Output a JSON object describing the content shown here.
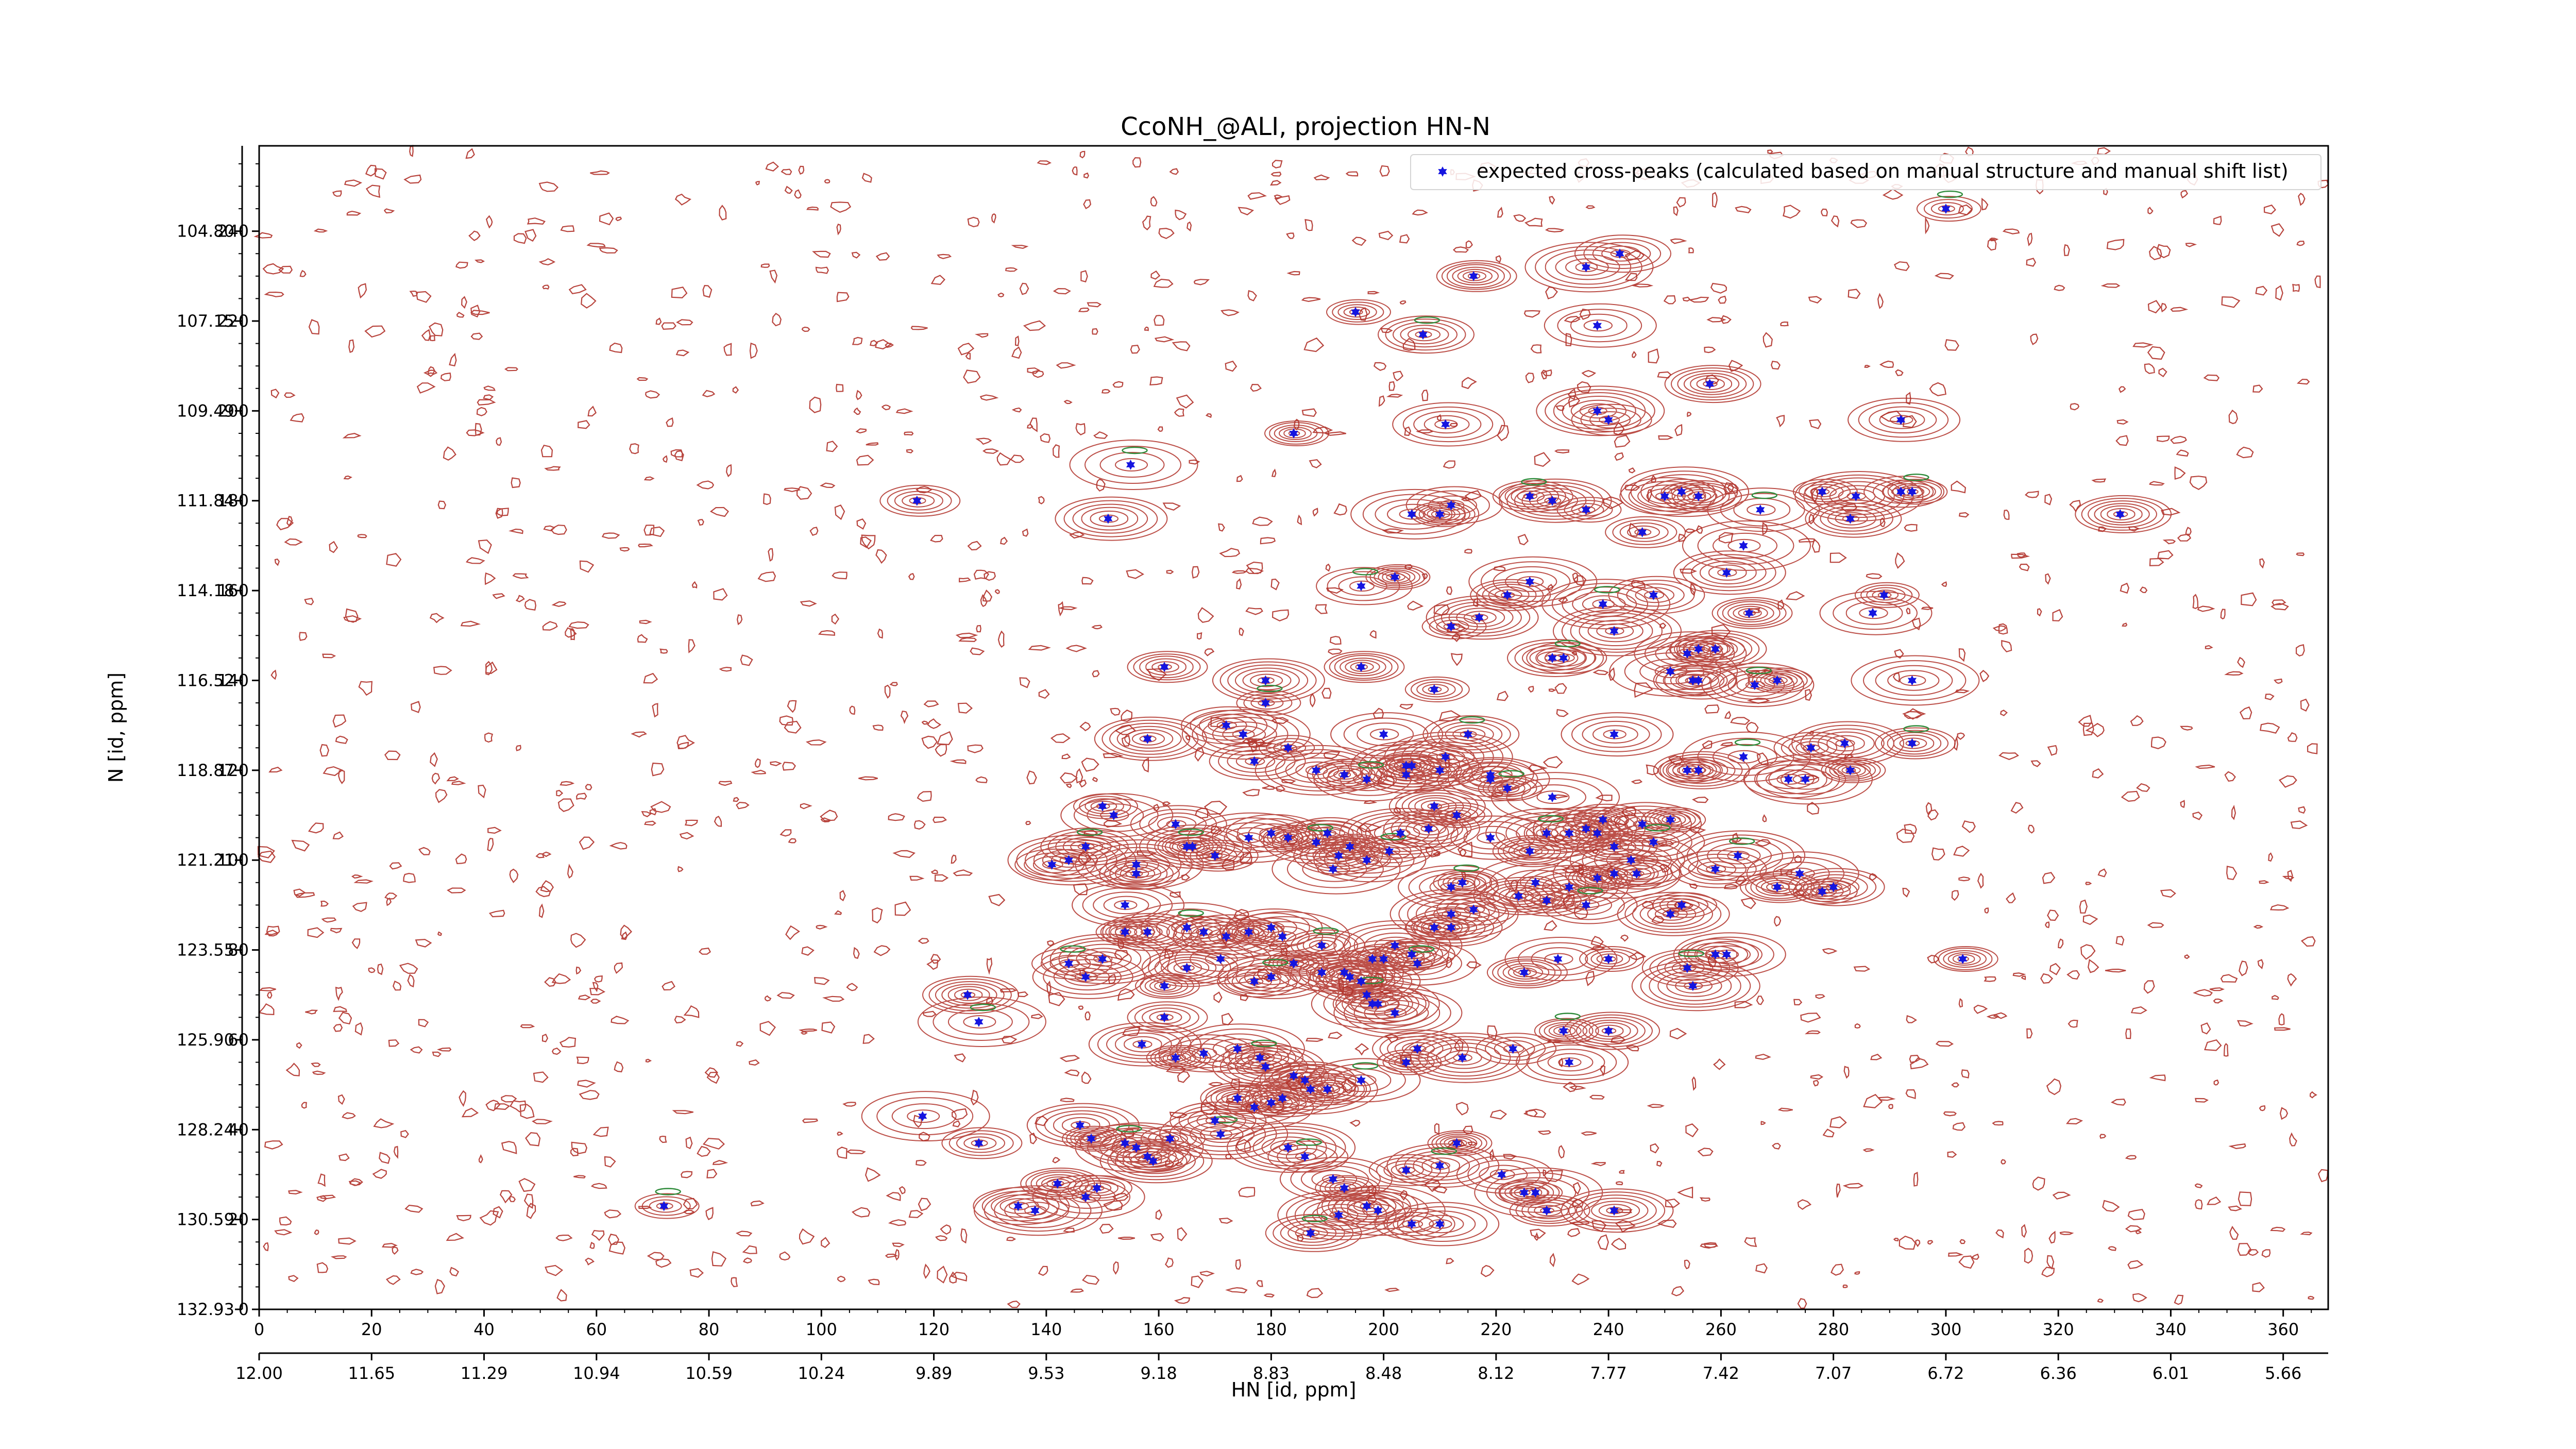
{
  "chart_data": {
    "type": "scatter",
    "title": "CcoNH_@ALI, projection HN-N",
    "xlabel": "HN [id, ppm]",
    "ylabel": "N [id, ppm]",
    "xlim": [
      0,
      368
    ],
    "ylim": [
      0,
      259
    ],
    "grid": false,
    "legend": {
      "position": "top-right",
      "entries": [
        "expected cross-peaks (calculated based on manual structure and manual shift list)"
      ]
    },
    "x_ticks_index": [
      "0",
      "20",
      "40",
      "60",
      "80",
      "100",
      "120",
      "140",
      "160",
      "180",
      "200",
      "220",
      "240",
      "260",
      "280",
      "300",
      "320",
      "340",
      "360"
    ],
    "x_ticks_ppm": [
      "12.00",
      "11.65",
      "11.29",
      "10.94",
      "10.59",
      "10.24",
      "9.89",
      "9.53",
      "9.18",
      "8.83",
      "8.48",
      "8.12",
      "7.77",
      "7.42",
      "7.07",
      "6.72",
      "6.36",
      "6.01",
      "5.66"
    ],
    "y_ticks_index": [
      "0",
      "20",
      "40",
      "60",
      "80",
      "100",
      "120",
      "140",
      "160",
      "180",
      "200",
      "220",
      "240"
    ],
    "y_ticks_ppm": [
      "132.93",
      "130.59",
      "128.24",
      "125.90",
      "123.55",
      "121.21",
      "118.87",
      "116.52",
      "114.18",
      "111.84",
      "109.49",
      "107.15",
      "104.80"
    ],
    "contour_color": "#b03028",
    "negative_contour_color": "#2e8b3a",
    "marker_color": "#1515e0",
    "series": [
      {
        "name": "expected cross-peaks (calculated based on manual structure and manual shift list)",
        "points": [
          [
            300,
            245
          ],
          [
            242,
            235
          ],
          [
            236,
            232
          ],
          [
            216,
            230
          ],
          [
            238,
            219
          ],
          [
            195,
            222
          ],
          [
            207,
            217
          ],
          [
            238,
            200
          ],
          [
            240,
            198
          ],
          [
            211,
            197
          ],
          [
            184,
            195
          ],
          [
            258,
            206
          ],
          [
            155,
            188
          ],
          [
            117,
            180
          ],
          [
            151,
            176
          ],
          [
            210,
            177
          ],
          [
            212,
            179
          ],
          [
            205,
            177
          ],
          [
            226,
            181
          ],
          [
            230,
            180
          ],
          [
            236,
            178
          ],
          [
            250,
            181
          ],
          [
            253,
            182
          ],
          [
            256,
            181
          ],
          [
            267,
            178
          ],
          [
            278,
            182
          ],
          [
            283,
            176
          ],
          [
            284,
            181
          ],
          [
            292,
            182
          ],
          [
            292,
            198
          ],
          [
            294,
            182
          ],
          [
            331,
            177
          ],
          [
            264,
            170
          ],
          [
            246,
            173
          ],
          [
            261,
            164
          ],
          [
            202,
            163
          ],
          [
            196,
            161
          ],
          [
            226,
            162
          ],
          [
            222,
            159
          ],
          [
            217,
            154
          ],
          [
            212,
            152
          ],
          [
            248,
            159
          ],
          [
            239,
            157
          ],
          [
            265,
            155
          ],
          [
            287,
            155
          ],
          [
            289,
            159
          ],
          [
            230,
            145
          ],
          [
            241,
            151
          ],
          [
            232,
            145
          ],
          [
            254,
            146
          ],
          [
            256,
            147
          ],
          [
            259,
            147
          ],
          [
            251,
            142
          ],
          [
            255,
            140
          ],
          [
            266,
            139
          ],
          [
            270,
            140
          ],
          [
            256,
            140
          ],
          [
            294,
            140
          ],
          [
            161,
            143
          ],
          [
            179,
            140
          ],
          [
            179,
            135
          ],
          [
            172,
            130
          ],
          [
            175,
            128
          ],
          [
            196,
            143
          ],
          [
            200,
            128
          ],
          [
            209,
            138
          ],
          [
            215,
            128
          ],
          [
            211,
            123
          ],
          [
            219,
            119
          ],
          [
            241,
            128
          ],
          [
            254,
            120
          ],
          [
            256,
            120
          ],
          [
            264,
            123
          ],
          [
            276,
            125
          ],
          [
            282,
            126
          ],
          [
            283,
            120
          ],
          [
            272,
            118
          ],
          [
            275,
            118
          ],
          [
            294,
            126
          ],
          [
            158,
            127
          ],
          [
            183,
            125
          ],
          [
            177,
            122
          ],
          [
            188,
            120
          ],
          [
            193,
            119
          ],
          [
            197,
            118
          ],
          [
            204,
            121
          ],
          [
            204,
            119
          ],
          [
            205,
            121
          ],
          [
            210,
            120
          ],
          [
            219,
            118
          ],
          [
            222,
            116
          ],
          [
            209,
            112
          ],
          [
            230,
            114
          ],
          [
            239,
            109
          ],
          [
            246,
            108
          ],
          [
            251,
            109
          ],
          [
            248,
            104
          ],
          [
            244,
            100
          ],
          [
            241,
            103
          ],
          [
            236,
            107
          ],
          [
            238,
            106
          ],
          [
            233,
            106
          ],
          [
            229,
            106
          ],
          [
            226,
            102
          ],
          [
            219,
            105
          ],
          [
            213,
            110
          ],
          [
            208,
            107
          ],
          [
            203,
            106
          ],
          [
            201,
            102
          ],
          [
            197,
            100
          ],
          [
            194,
            103
          ],
          [
            192,
            101
          ],
          [
            191,
            98
          ],
          [
            190,
            106
          ],
          [
            188,
            104
          ],
          [
            183,
            105
          ],
          [
            180,
            106
          ],
          [
            176,
            105
          ],
          [
            170,
            101
          ],
          [
            166,
            103
          ],
          [
            165,
            103
          ],
          [
            163,
            108
          ],
          [
            156,
            99
          ],
          [
            156,
            97
          ],
          [
            152,
            110
          ],
          [
            150,
            112
          ],
          [
            147,
            103
          ],
          [
            144,
            100
          ],
          [
            141,
            99
          ],
          [
            154,
            90
          ],
          [
            154,
            84
          ],
          [
            158,
            84
          ],
          [
            165,
            85
          ],
          [
            168,
            84
          ],
          [
            172,
            83
          ],
          [
            176,
            84
          ],
          [
            180,
            85
          ],
          [
            182,
            83
          ],
          [
            189,
            81
          ],
          [
            193,
            75
          ],
          [
            198,
            78
          ],
          [
            200,
            78
          ],
          [
            202,
            81
          ],
          [
            205,
            79
          ],
          [
            206,
            77
          ],
          [
            209,
            85
          ],
          [
            212,
            85
          ],
          [
            212,
            88
          ],
          [
            216,
            89
          ],
          [
            212,
            94
          ],
          [
            214,
            95
          ],
          [
            224,
            92
          ],
          [
            227,
            95
          ],
          [
            229,
            91
          ],
          [
            233,
            94
          ],
          [
            238,
            96
          ],
          [
            236,
            90
          ],
          [
            241,
            97
          ],
          [
            245,
            97
          ],
          [
            251,
            88
          ],
          [
            253,
            90
          ],
          [
            259,
            98
          ],
          [
            263,
            101
          ],
          [
            270,
            94
          ],
          [
            274,
            97
          ],
          [
            278,
            93
          ],
          [
            280,
            94
          ],
          [
            150,
            78
          ],
          [
            144,
            77
          ],
          [
            147,
            74
          ],
          [
            161,
            72
          ],
          [
            165,
            76
          ],
          [
            171,
            78
          ],
          [
            177,
            73
          ],
          [
            180,
            74
          ],
          [
            184,
            77
          ],
          [
            189,
            75
          ],
          [
            198,
            68
          ],
          [
            194,
            74
          ],
          [
            196,
            73
          ],
          [
            197,
            70
          ],
          [
            199,
            68
          ],
          [
            202,
            66
          ],
          [
            225,
            75
          ],
          [
            231,
            78
          ],
          [
            240,
            78
          ],
          [
            254,
            76
          ],
          [
            255,
            72
          ],
          [
            259,
            79
          ],
          [
            261,
            79
          ],
          [
            303,
            78
          ],
          [
            126,
            70
          ],
          [
            128,
            64
          ],
          [
            161,
            65
          ],
          [
            157,
            59
          ],
          [
            163,
            56
          ],
          [
            168,
            57
          ],
          [
            174,
            58
          ],
          [
            178,
            56
          ],
          [
            179,
            54
          ],
          [
            184,
            52
          ],
          [
            186,
            51
          ],
          [
            187,
            49
          ],
          [
            190,
            49
          ],
          [
            196,
            51
          ],
          [
            204,
            55
          ],
          [
            206,
            58
          ],
          [
            214,
            56
          ],
          [
            223,
            58
          ],
          [
            233,
            55
          ],
          [
            232,
            62
          ],
          [
            240,
            62
          ],
          [
            118,
            43
          ],
          [
            128,
            37
          ],
          [
            146,
            41
          ],
          [
            148,
            38
          ],
          [
            154,
            37
          ],
          [
            156,
            36
          ],
          [
            158,
            34
          ],
          [
            159,
            33
          ],
          [
            162,
            38
          ],
          [
            170,
            42
          ],
          [
            171,
            39
          ],
          [
            174,
            47
          ],
          [
            177,
            45
          ],
          [
            180,
            46
          ],
          [
            182,
            47
          ],
          [
            183,
            36
          ],
          [
            186,
            34
          ],
          [
            191,
            29
          ],
          [
            193,
            27
          ],
          [
            197,
            23
          ],
          [
            199,
            22
          ],
          [
            204,
            31
          ],
          [
            210,
            32
          ],
          [
            213,
            37
          ],
          [
            221,
            30
          ],
          [
            227,
            26
          ],
          [
            229,
            22
          ],
          [
            241,
            22
          ],
          [
            72,
            23
          ],
          [
            135,
            23
          ],
          [
            138,
            22
          ],
          [
            142,
            28
          ],
          [
            147,
            25
          ],
          [
            149,
            27
          ],
          [
            187,
            17
          ],
          [
            192,
            21
          ],
          [
            205,
            19
          ],
          [
            210,
            19
          ],
          [
            225,
            26
          ]
        ]
      }
    ]
  }
}
